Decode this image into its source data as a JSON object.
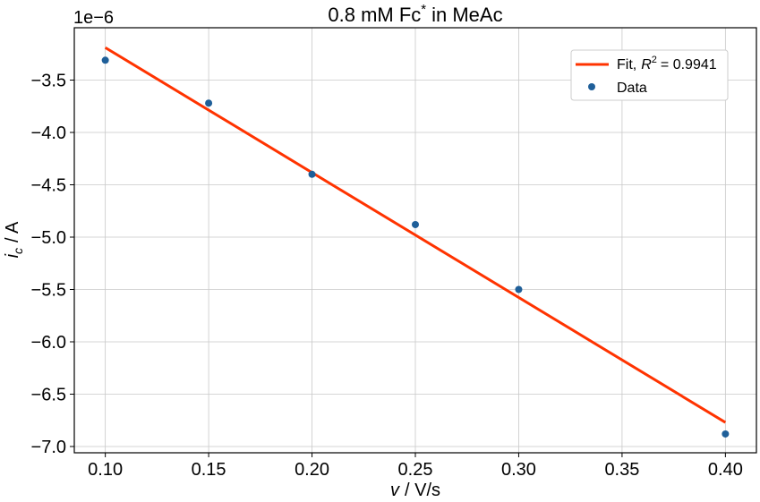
{
  "chart_data": {
    "type": "scatter",
    "title": "0.8 mM Fc",
    "title_superscript": "*",
    "title_suffix": "in MeAc",
    "xlabel": {
      "var": "v",
      "unit": "/ V/s"
    },
    "ylabel": {
      "var": "i",
      "subscript": "c",
      "unit": "/ A"
    },
    "y_offset_text": "1e−6",
    "xlim": [
      0.085,
      0.415
    ],
    "ylim": [
      -7.06,
      -3.0
    ],
    "x_ticks": [
      0.1,
      0.15,
      0.2,
      0.25,
      0.3,
      0.35,
      0.4
    ],
    "x_tick_labels": [
      "0.10",
      "0.15",
      "0.20",
      "0.25",
      "0.30",
      "0.35",
      "0.40"
    ],
    "y_ticks": [
      -3.5,
      -4.0,
      -4.5,
      -5.0,
      -5.5,
      -6.0,
      -6.5,
      -7.0
    ],
    "y_tick_labels": [
      "−3.5",
      "−4.0",
      "−4.5",
      "−5.0",
      "−5.5",
      "−6.0",
      "−6.5",
      "−7.0"
    ],
    "grid": true,
    "legend_position": "top-right",
    "series": [
      {
        "name": "Fit, R² = 0.9941",
        "legend_label": "Fit,",
        "legend_r_sup": "2",
        "legend_value": "=  0.9941",
        "kind": "line",
        "color": "#ff3300",
        "x": [
          0.1,
          0.4
        ],
        "y": [
          -3.19,
          -6.77
        ]
      },
      {
        "name": "Data",
        "kind": "scatter",
        "color": "#1f5f99",
        "x": [
          0.1,
          0.15,
          0.2,
          0.25,
          0.3,
          0.4
        ],
        "y": [
          -3.31,
          -3.72,
          -4.4,
          -4.88,
          -5.5,
          -6.88
        ]
      }
    ]
  }
}
